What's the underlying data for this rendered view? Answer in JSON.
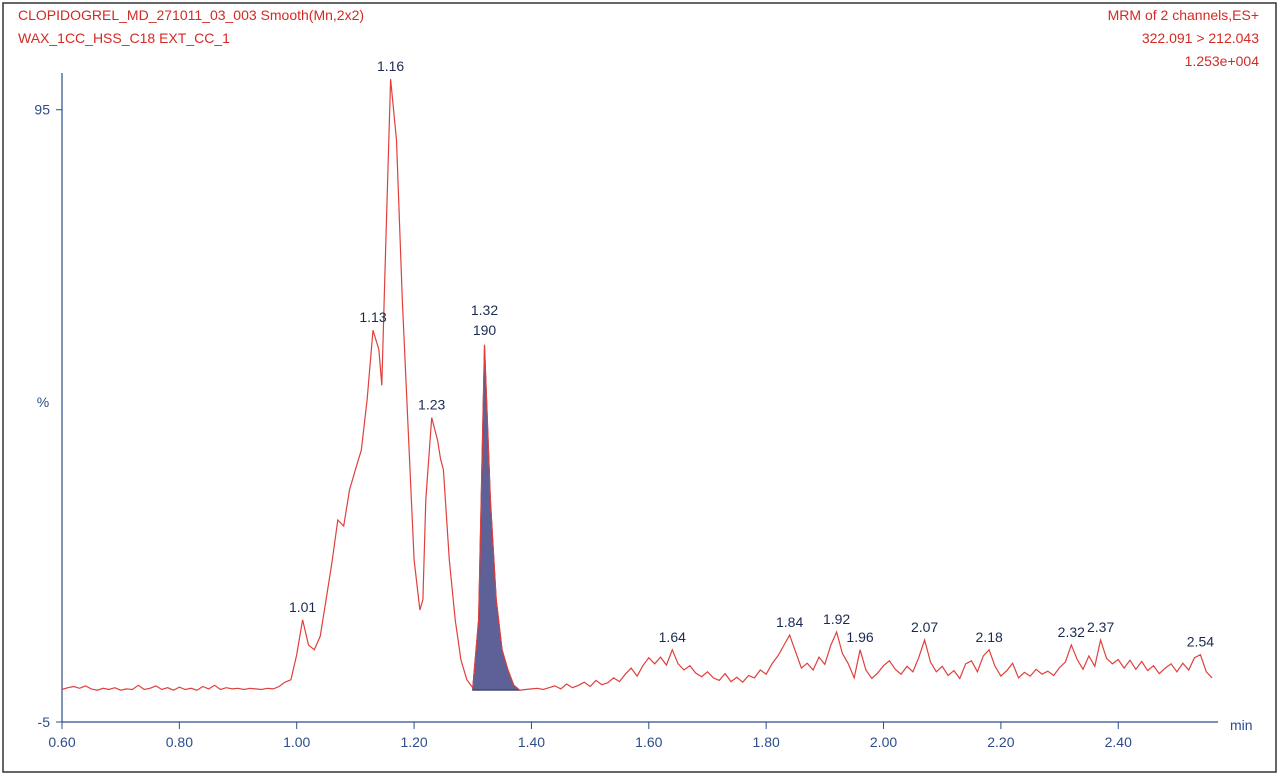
{
  "chart_data": {
    "type": "line",
    "header_left": [
      "CLOPIDOGREL_MD_271011_03_003 Smooth(Mn,2x2)",
      "WAX_1CC_HSS_C18 EXT_CC_1"
    ],
    "header_right": [
      "MRM of 2 channels,ES+",
      "322.091 > 212.043",
      "1.253e+004"
    ],
    "xlabel": "min",
    "ylabel": "%",
    "color": "#e0403c",
    "xlim": [
      0.6,
      2.57
    ],
    "ylim": [
      -5,
      101
    ],
    "xticks": [
      {
        "value": 0.6,
        "label": "0.60"
      },
      {
        "value": 0.8,
        "label": "0.80"
      },
      {
        "value": 1.0,
        "label": "1.00"
      },
      {
        "value": 1.2,
        "label": "1.20"
      },
      {
        "value": 1.4,
        "label": "1.40"
      },
      {
        "value": 1.6,
        "label": "1.60"
      },
      {
        "value": 1.8,
        "label": "1.80"
      },
      {
        "value": 2.0,
        "label": "2.00"
      },
      {
        "value": 2.2,
        "label": "2.20"
      },
      {
        "value": 2.4,
        "label": "2.40"
      }
    ],
    "yticks": [
      -5,
      95
    ],
    "shade": {
      "from": 1.3,
      "to": 1.38,
      "color": "#5d6197"
    },
    "peaks": [
      {
        "x": 1.01
      },
      {
        "x": 1.13
      },
      {
        "x": 1.16
      },
      {
        "x": 1.23
      },
      {
        "x": 1.32,
        "area": 190
      },
      {
        "x": 1.64
      },
      {
        "x": 1.84
      },
      {
        "x": 1.92
      },
      {
        "x": 1.96
      },
      {
        "x": 2.07
      },
      {
        "x": 2.18
      },
      {
        "x": 2.32
      },
      {
        "x": 2.37
      },
      {
        "x": 2.54
      }
    ],
    "x": [
      0.6,
      0.61,
      0.62,
      0.63,
      0.64,
      0.65,
      0.66,
      0.67,
      0.68,
      0.69,
      0.7,
      0.71,
      0.72,
      0.73,
      0.74,
      0.75,
      0.76,
      0.77,
      0.78,
      0.79,
      0.8,
      0.81,
      0.82,
      0.83,
      0.84,
      0.85,
      0.86,
      0.87,
      0.88,
      0.89,
      0.9,
      0.91,
      0.92,
      0.93,
      0.94,
      0.95,
      0.96,
      0.97,
      0.98,
      0.99,
      1.0,
      1.01,
      1.02,
      1.03,
      1.04,
      1.05,
      1.06,
      1.07,
      1.08,
      1.09,
      1.1,
      1.11,
      1.12,
      1.13,
      1.14,
      1.145,
      1.15,
      1.16,
      1.17,
      1.18,
      1.19,
      1.2,
      1.21,
      1.215,
      1.22,
      1.23,
      1.24,
      1.245,
      1.25,
      1.26,
      1.27,
      1.28,
      1.29,
      1.3,
      1.31,
      1.32,
      1.33,
      1.34,
      1.35,
      1.36,
      1.37,
      1.38,
      1.39,
      1.4,
      1.41,
      1.42,
      1.43,
      1.44,
      1.45,
      1.46,
      1.47,
      1.48,
      1.49,
      1.5,
      1.51,
      1.52,
      1.53,
      1.54,
      1.55,
      1.56,
      1.57,
      1.58,
      1.59,
      1.6,
      1.61,
      1.62,
      1.63,
      1.64,
      1.65,
      1.66,
      1.67,
      1.68,
      1.69,
      1.7,
      1.71,
      1.72,
      1.73,
      1.74,
      1.75,
      1.76,
      1.77,
      1.78,
      1.79,
      1.8,
      1.81,
      1.82,
      1.83,
      1.84,
      1.85,
      1.86,
      1.87,
      1.88,
      1.89,
      1.9,
      1.91,
      1.92,
      1.93,
      1.94,
      1.95,
      1.96,
      1.97,
      1.98,
      1.99,
      2.0,
      2.01,
      2.02,
      2.03,
      2.04,
      2.05,
      2.06,
      2.07,
      2.08,
      2.09,
      2.1,
      2.11,
      2.12,
      2.13,
      2.14,
      2.15,
      2.16,
      2.17,
      2.18,
      2.19,
      2.2,
      2.21,
      2.22,
      2.23,
      2.24,
      2.25,
      2.26,
      2.27,
      2.28,
      2.29,
      2.3,
      2.31,
      2.32,
      2.33,
      2.34,
      2.35,
      2.36,
      2.37,
      2.38,
      2.39,
      2.4,
      2.41,
      2.42,
      2.43,
      2.44,
      2.45,
      2.46,
      2.47,
      2.48,
      2.49,
      2.5,
      2.51,
      2.52,
      2.53,
      2.54,
      2.55,
      2.56
    ],
    "values": [
      0.3,
      0.6,
      0.8,
      0.5,
      0.9,
      0.4,
      0.2,
      0.5,
      0.3,
      0.6,
      0.2,
      0.4,
      0.3,
      1.0,
      0.3,
      0.5,
      0.9,
      0.3,
      0.6,
      0.2,
      0.7,
      0.3,
      0.5,
      0.2,
      0.8,
      0.4,
      1.0,
      0.3,
      0.6,
      0.4,
      0.5,
      0.3,
      0.5,
      0.4,
      0.3,
      0.5,
      0.4,
      0.8,
      1.5,
      1.9,
      6,
      11.7,
      7.6,
      6.8,
      9,
      15,
      21,
      28,
      27,
      32.9,
      36.2,
      39.4,
      47.6,
      59,
      55.8,
      50,
      67,
      100,
      90,
      64,
      42.7,
      21.5,
      13.3,
      15,
      31.3,
      44.7,
      41,
      38,
      36.2,
      21.5,
      11.7,
      5.1,
      1.9,
      0.6,
      11.7,
      56.6,
      31.3,
      15,
      6.8,
      3.5,
      1,
      0.2,
      0.3,
      0.4,
      0.5,
      0.3,
      0.6,
      0.9,
      0.4,
      1.2,
      0.6,
      1.0,
      1.5,
      0.8,
      1.8,
      1.1,
      1.4,
      2.2,
      1.6,
      2.8,
      3.8,
      2.5,
      4.2,
      5.5,
      4.5,
      5.6,
      4.3,
      6.8,
      4.5,
      3.5,
      4.2,
      3,
      2.4,
      3.2,
      2.2,
      1.8,
      2.9,
      1.6,
      2.3,
      1.5,
      2.6,
      2.2,
      3.5,
      2.8,
      4.5,
      5.8,
      7.5,
      9.2,
      6.5,
      3.8,
      4.6,
      3.5,
      5.6,
      4.4,
      7.5,
      9.7,
      6.2,
      4.5,
      2.2,
      6.8,
      3.5,
      2.1,
      3,
      4.2,
      5,
      3.6,
      2.8,
      4.1,
      3.2,
      5.5,
      8.4,
      4.8,
      3.2,
      4.1,
      2.6,
      3.4,
      2.1,
      4.5,
      5,
      3.2,
      5.8,
      6.8,
      4.1,
      2.5,
      3.4,
      4.6,
      2.2,
      3.1,
      2.5,
      3.6,
      2.8,
      3.3,
      2.6,
      3.9,
      4.8,
      7.6,
      5.2,
      3.6,
      5.8,
      4.1,
      8.4,
      5.4,
      4.5,
      5.2,
      3.8,
      5.1,
      3.6,
      4.9,
      3.4,
      4.2,
      2.9,
      3.8,
      4.5,
      3.2,
      4.6,
      3.5,
      5.5,
      6,
      3.2,
      2.2
    ]
  }
}
